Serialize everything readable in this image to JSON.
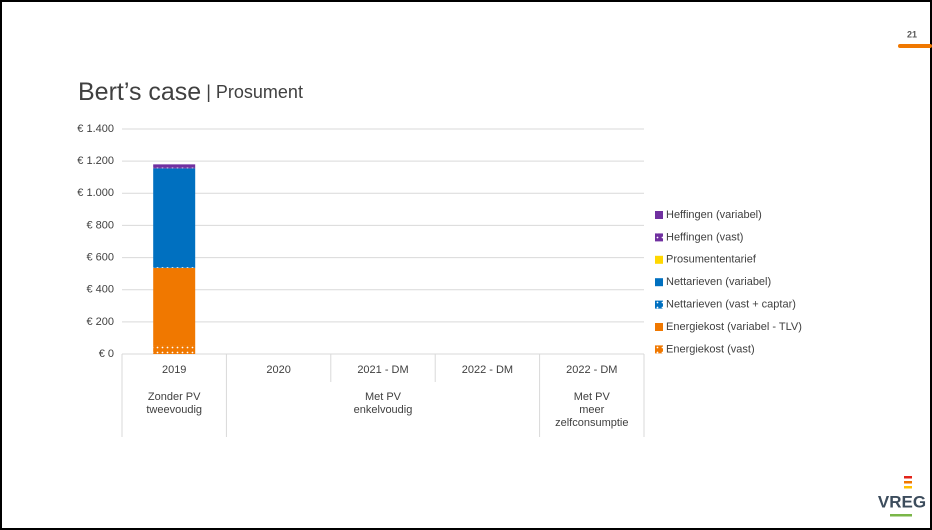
{
  "slide_number": "21",
  "logo": "VREG",
  "chart_data": {
    "type": "stacked-bar",
    "title": "Bert’s case",
    "subtitle": "Prosument",
    "categories": [
      "2019",
      "2020",
      "2021 - DM",
      "2022 - DM",
      "2022 - DM"
    ],
    "groups": [
      {
        "lines": [
          "Zonder PV",
          "tweevoudig"
        ],
        "span": 1
      },
      {
        "lines": [
          "Met PV",
          "enkelvoudig"
        ],
        "span": 3
      },
      {
        "lines": [
          "Met PV",
          "meer",
          "zelfconsumptie"
        ],
        "span": 1
      }
    ],
    "series": [
      {
        "name": "Energiekost (vast)",
        "color": "#f07800",
        "pattern": "dots",
        "values": [
          50,
          null,
          null,
          null,
          null
        ]
      },
      {
        "name": "Energiekost (variabel - TLV)",
        "color": "#f07800",
        "values": [
          485,
          null,
          null,
          null,
          null
        ]
      },
      {
        "name": "Nettarieven (vast + captar)",
        "color": "#0070c0",
        "pattern": "dots",
        "values": [
          5,
          null,
          null,
          null,
          null
        ]
      },
      {
        "name": "Nettarieven (variabel)",
        "color": "#0070c0",
        "values": [
          615,
          null,
          null,
          null,
          null
        ]
      },
      {
        "name": "Prosumententarief",
        "color": "#ffd700",
        "values": [
          0,
          null,
          null,
          null,
          null
        ]
      },
      {
        "name": "Heffingen (vast)",
        "color": "#7030a0",
        "pattern": "dots",
        "values": [
          5,
          null,
          null,
          null,
          null
        ]
      },
      {
        "name": "Heffingen (variabel)",
        "color": "#7030a0",
        "values": [
          20,
          null,
          null,
          null,
          null
        ]
      }
    ],
    "ylim": [
      0,
      1400
    ],
    "yticks": [
      {
        "value": 0,
        "label": "€ 0"
      },
      {
        "value": 200,
        "label": "€ 200"
      },
      {
        "value": 400,
        "label": "€ 400"
      },
      {
        "value": 600,
        "label": "€ 600"
      },
      {
        "value": 800,
        "label": "€ 800"
      },
      {
        "value": 1000,
        "label": "€ 1.000"
      },
      {
        "value": 1200,
        "label": "€ 1.200"
      },
      {
        "value": 1400,
        "label": "€ 1.400"
      }
    ],
    "grid": true,
    "legend": "right"
  }
}
